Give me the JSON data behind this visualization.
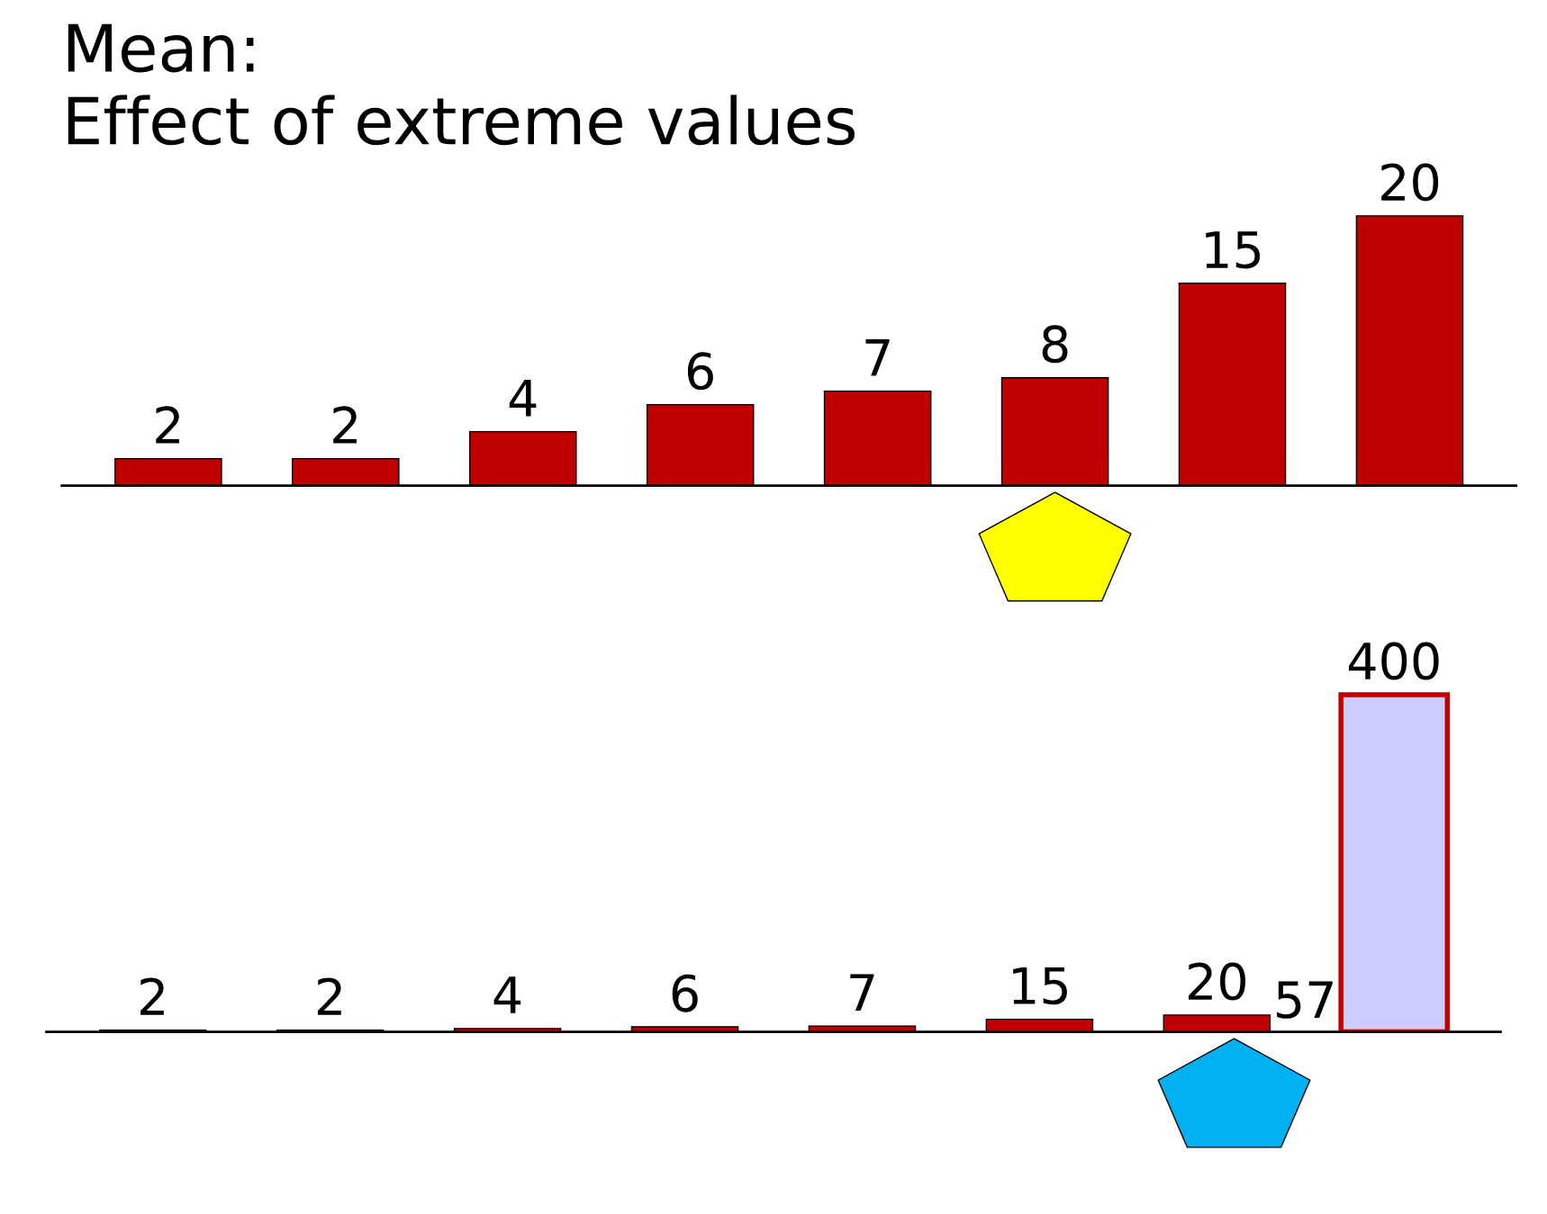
{
  "chart_data": [
    {
      "type": "bar",
      "title": "Mean:\nEffect of extreme values",
      "categories": [
        null,
        null,
        null,
        null,
        null,
        null,
        null,
        null
      ],
      "values": [
        2,
        2,
        4,
        6,
        7,
        8,
        15,
        20
      ],
      "colors": [
        "#c00000",
        "#c00000",
        "#c00000",
        "#c00000",
        "#c00000",
        "#c00000",
        "#c00000",
        "#c00000"
      ],
      "data_labels": true,
      "tick_labels": false
    },
    {
      "type": "bar",
      "categories": [
        null,
        null,
        null,
        null,
        null,
        null,
        null,
        null
      ],
      "values": [
        2,
        2,
        4,
        6,
        7,
        15,
        20,
        400
      ],
      "colors": [
        "#c00000",
        "#c00000",
        "#c00000",
        "#c00000",
        "#c00000",
        "#c00000",
        "#c00000",
        "#ccccff"
      ],
      "annotations": [
        "57"
      ],
      "data_labels": true,
      "tick_labels": false
    }
  ]
}
